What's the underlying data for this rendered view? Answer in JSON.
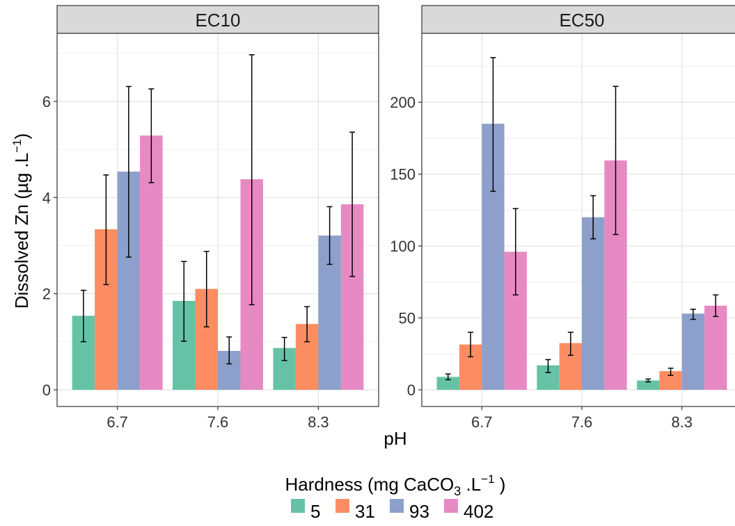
{
  "chart_data": {
    "type": "bar",
    "x_label": "pH",
    "y_label": "Dissolved Zn (µg .L",
    "y_label_sup": "−1",
    "y_label_close": ")",
    "categories": [
      "6.7",
      "7.6",
      "8.3"
    ],
    "legend": {
      "title_prefix": "Hardness (mg CaCO",
      "title_sub": "3",
      "title_mid": " .L",
      "title_sup": "−1",
      "title_suffix": " )",
      "entries": [
        "5",
        "31",
        "93",
        "402"
      ]
    },
    "colors": [
      "#66c2a5",
      "#fc8d62",
      "#8da0cb",
      "#e78ac3"
    ],
    "facets": [
      {
        "title": "EC10",
        "ylim": [
          0,
          7.3
        ],
        "y_ticks": [
          0,
          2,
          4,
          6
        ],
        "series": [
          {
            "name": "5",
            "values": [
              1.54,
              1.85,
              0.87
            ],
            "err_low": [
              1.0,
              1.01,
              0.61
            ],
            "err_high": [
              2.07,
              2.67,
              1.09
            ]
          },
          {
            "name": "31",
            "values": [
              3.34,
              2.1,
              1.37
            ],
            "err_low": [
              2.19,
              1.31,
              1.0
            ],
            "err_high": [
              4.47,
              2.88,
              1.73
            ]
          },
          {
            "name": "93",
            "values": [
              4.54,
              0.81,
              3.21
            ],
            "err_low": [
              2.76,
              0.54,
              2.61
            ],
            "err_high": [
              6.31,
              1.1,
              3.81
            ]
          },
          {
            "name": "402",
            "values": [
              5.29,
              4.38,
              3.86
            ],
            "err_low": [
              4.31,
              1.77,
              2.36
            ],
            "err_high": [
              6.26,
              6.97,
              5.36
            ]
          }
        ]
      },
      {
        "title": "EC50",
        "ylim": [
          0,
          244
        ],
        "y_ticks": [
          0,
          50,
          100,
          150,
          200
        ],
        "series": [
          {
            "name": "5",
            "values": [
              9,
              17,
              6.5
            ],
            "err_low": [
              7,
              12,
              5.5
            ],
            "err_high": [
              11,
              21,
              7.5
            ]
          },
          {
            "name": "31",
            "values": [
              31.5,
              32.5,
              13
            ],
            "err_low": [
              23,
              24,
              10
            ],
            "err_high": [
              40,
              40,
              15
            ]
          },
          {
            "name": "93",
            "values": [
              185,
              120,
              53
            ],
            "err_low": [
              138,
              105,
              49
            ],
            "err_high": [
              231,
              135,
              56
            ]
          },
          {
            "name": "402",
            "values": [
              96,
              159.5,
              58.5
            ],
            "err_low": [
              66,
              108,
              51
            ],
            "err_high": [
              126,
              211,
              66
            ]
          }
        ]
      }
    ]
  }
}
